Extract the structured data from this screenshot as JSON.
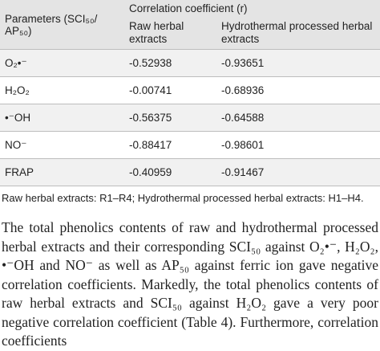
{
  "table": {
    "header": {
      "parameters": "Parameters (SCI₅₀/ AP₅₀)",
      "group": "Correlation coefficient (r)",
      "columns": [
        "Raw herbal extracts",
        "Hydrothermal processed herbal extracts"
      ]
    },
    "rows": [
      [
        "O₂•⁻",
        "-0.52938",
        "-0.93651"
      ],
      [
        "H₂O₂",
        "-0.00741",
        "-0.68936"
      ],
      [
        "•⁻OH",
        "-0.56375",
        "-0.64588"
      ],
      [
        "NO⁻",
        "-0.88417",
        "-0.98601"
      ],
      [
        "FRAP",
        "-0.40959",
        "-0.91467"
      ]
    ],
    "note": "Raw herbal extracts: R1–R4; Hydrothermal processed herbal extracts: H1–H4."
  },
  "paragraph": "The total phenolics contents of raw and hydrothermal processed herbal extracts and their corresponding SCI₅₀ against O₂•⁻, H₂O₂, •⁻OH and NO⁻ as well as AP₅₀ against ferric ion gave negative correlation coefficients. Markedly, the total phenolics contents of raw herbal extracts and SCI₅₀ against H₂O₂ gave a very poor negative correlation coefficient (Table 4). Furthermore, correlation coefficients"
}
